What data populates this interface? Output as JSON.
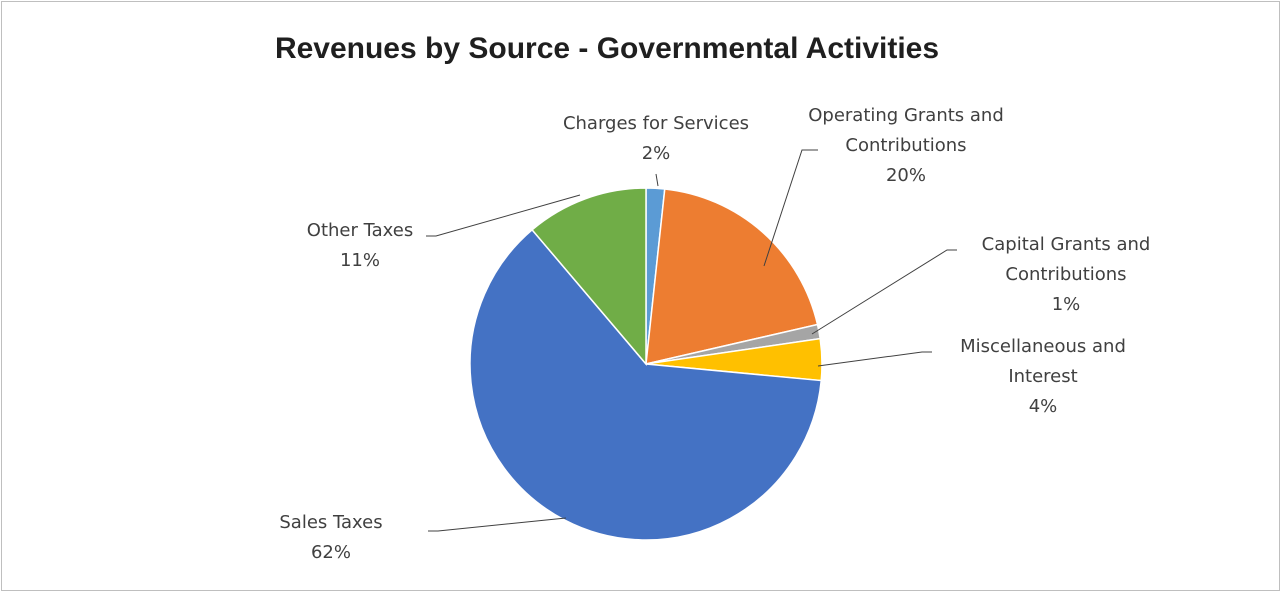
{
  "chart_data": {
    "type": "pie",
    "title": "Revenues by Source - Governmental Activities",
    "slices": [
      {
        "name": "Charges for Services",
        "value": 1.7,
        "label": "2%",
        "label_lines": [
          "Charges for Services"
        ],
        "color": "#5B9BD5"
      },
      {
        "name": "Operating Grants and Contributions",
        "value": 19.7,
        "label": "20%",
        "label_lines": [
          "Operating Grants and",
          "Contributions"
        ],
        "color": "#ED7D31"
      },
      {
        "name": "Capital Grants and Contributions",
        "value": 1.3,
        "label": "1%",
        "label_lines": [
          "Capital Grants and",
          "Contributions"
        ],
        "color": "#A5A5A5"
      },
      {
        "name": "Miscellaneous and Interest",
        "value": 3.8,
        "label": "4%",
        "label_lines": [
          "Miscellaneous and",
          "Interest"
        ],
        "color": "#FFC000"
      },
      {
        "name": "Sales Taxes",
        "value": 62.3,
        "label": "62%",
        "label_lines": [
          "Sales Taxes"
        ],
        "color": "#4472C4"
      },
      {
        "name": "Other Taxes",
        "value": 11.2,
        "label": "11%",
        "label_lines": [
          "Other Taxes"
        ],
        "color": "#70AD47"
      }
    ],
    "legend": "none"
  }
}
